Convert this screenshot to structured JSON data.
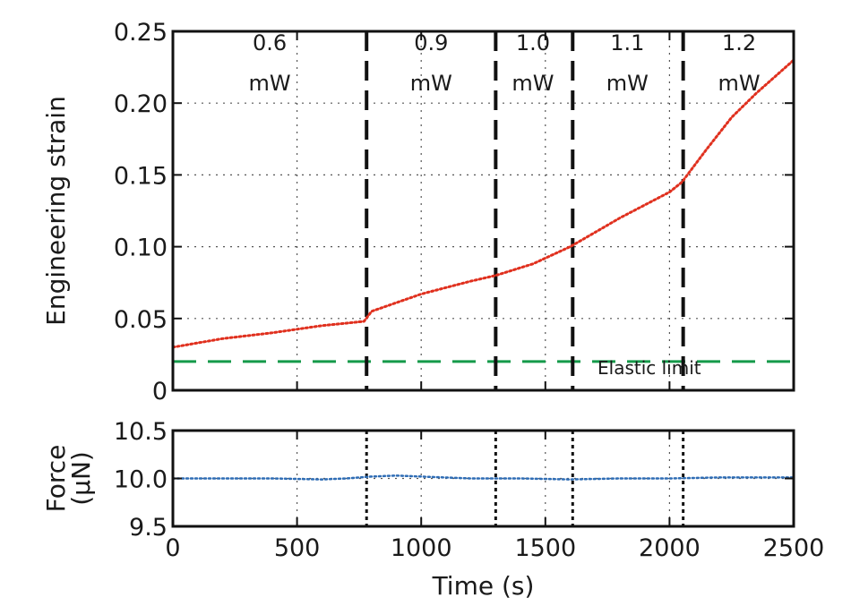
{
  "chart_data": [
    {
      "type": "line",
      "title": "",
      "xlabel": "Time (s)",
      "ylabel": "Engineering strain",
      "xlim": [
        0,
        2500
      ],
      "ylim": [
        0,
        0.25
      ],
      "x_ticks": [
        0,
        500,
        1000,
        1500,
        2000,
        2500
      ],
      "y_ticks": [
        0,
        0.05,
        0.1,
        0.15,
        0.2,
        0.25
      ],
      "y_tick_labels": [
        "0",
        "0.05",
        "0.10",
        "0.15",
        "0.20",
        "0.25"
      ],
      "grid": true,
      "colors": {
        "strain": "#e0301e",
        "elastic": "#159a4a",
        "divider": "#111111",
        "grid": "#555555"
      },
      "series": [
        {
          "name": "",
          "style": "dotted",
          "x": [
            0,
            200,
            400,
            600,
            770,
            800,
            1000,
            1200,
            1300,
            1450,
            1600,
            1650,
            1800,
            2000,
            2050,
            2150,
            2250,
            2350,
            2500
          ],
          "y": [
            0.03,
            0.036,
            0.04,
            0.045,
            0.048,
            0.055,
            0.067,
            0.076,
            0.08,
            0.088,
            0.1,
            0.105,
            0.12,
            0.138,
            0.145,
            0.168,
            0.19,
            0.207,
            0.23
          ]
        }
      ],
      "reference_lines": [
        {
          "label": "Elastic limit",
          "y": 0.02,
          "style": "dashed"
        }
      ],
      "dividers": [
        780,
        1300,
        1610,
        2055
      ],
      "power_bands": [
        {
          "value": "0.6",
          "unit": "mW",
          "x": 390
        },
        {
          "value": "0.9",
          "unit": "mW",
          "x": 1040
        },
        {
          "value": "1.0",
          "unit": "mW",
          "x": 1450
        },
        {
          "value": "1.1",
          "unit": "mW",
          "x": 1830
        },
        {
          "value": "1.2",
          "unit": "mW",
          "x": 2280
        }
      ]
    },
    {
      "type": "line",
      "title": "",
      "xlabel": "Time (s)",
      "ylabel": "Force (μN)",
      "ylabel_lines": [
        "Force",
        "(μN)"
      ],
      "xlim": [
        0,
        2500
      ],
      "ylim": [
        9.5,
        10.5
      ],
      "x_ticks": [
        0,
        500,
        1000,
        1500,
        2000,
        2500
      ],
      "y_ticks": [
        9.5,
        10.0,
        10.5
      ],
      "y_tick_labels": [
        "9.5",
        "10.0",
        "10.5"
      ],
      "grid": true,
      "colors": {
        "force": "#2f6db5"
      },
      "series": [
        {
          "name": "",
          "style": "dotted",
          "x": [
            0,
            200,
            400,
            600,
            700,
            800,
            900,
            1000,
            1200,
            1400,
            1600,
            1800,
            2000,
            2200,
            2400,
            2500
          ],
          "y": [
            10.0,
            10.0,
            10.0,
            9.99,
            10.0,
            10.02,
            10.03,
            10.02,
            10.0,
            10.0,
            9.99,
            10.0,
            10.0,
            10.01,
            10.01,
            10.01
          ]
        }
      ],
      "dividers": [
        780,
        1300,
        1610,
        2055
      ]
    }
  ]
}
